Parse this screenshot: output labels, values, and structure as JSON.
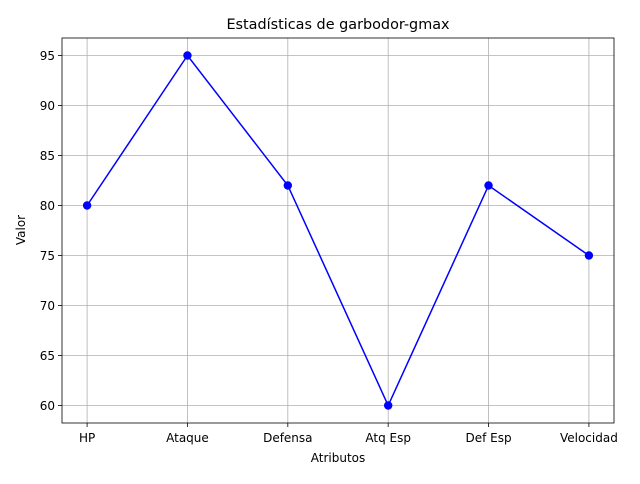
{
  "chart_data": {
    "type": "line",
    "title": "Estadísticas de garbodor-gmax",
    "xlabel": "Atributos",
    "ylabel": "Valor",
    "categories": [
      "HP",
      "Ataque",
      "Defensa",
      "Atq Esp",
      "Def Esp",
      "Velocidad"
    ],
    "series": [
      {
        "values": [
          80,
          95,
          82,
          60,
          82,
          75
        ],
        "color": "#0000ff",
        "marker": "circle"
      }
    ],
    "yticks": [
      60,
      65,
      70,
      75,
      80,
      85,
      90,
      95
    ],
    "ylim": [
      58.25,
      96.75
    ],
    "grid": true,
    "legend": "none"
  }
}
